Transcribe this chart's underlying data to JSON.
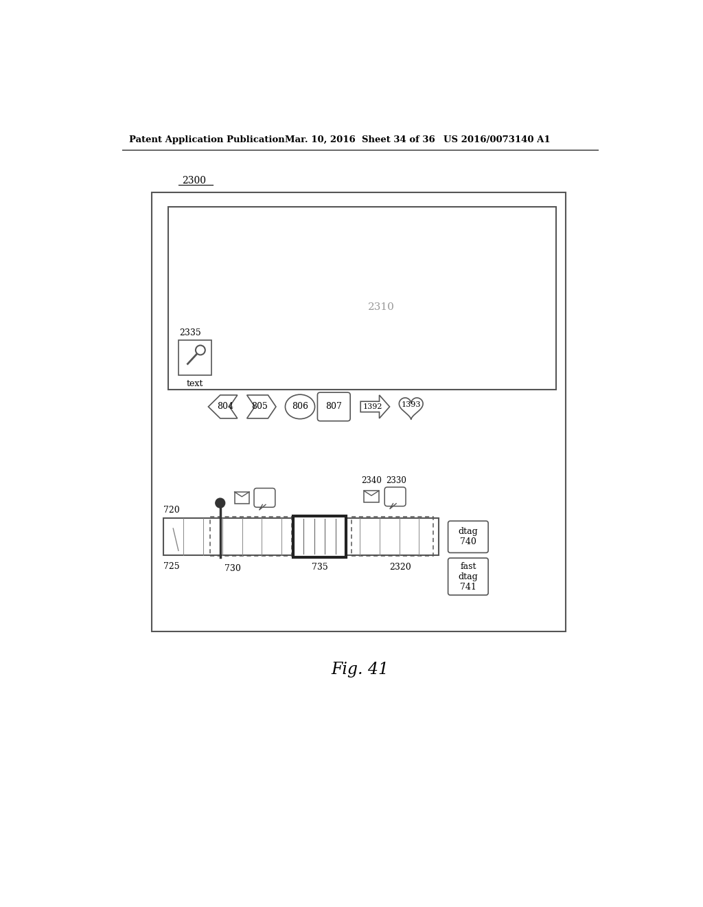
{
  "bg_color": "#ffffff",
  "header_left": "Patent Application Publication",
  "header_mid": "Mar. 10, 2016  Sheet 34 of 36",
  "header_right": "US 2016/0073140 A1",
  "fig_label": "Fig. 41",
  "outer_box_label": "2300",
  "screen_label": "2310",
  "icon_label": "2335",
  "icon_text": "text",
  "timeline_label": "720",
  "playhead_label": "730",
  "cursor_label": "725",
  "highlight_label": "735",
  "dashed_region2_label": "2320",
  "dtag_label": "dtag\n740",
  "fastdtag_label": "fast\ndtag\n741",
  "email_icon2_label": "2340",
  "bubble_icon2_label": "2330",
  "btn_labels": [
    "804",
    "805",
    "806",
    "807",
    "1392",
    "1393"
  ]
}
